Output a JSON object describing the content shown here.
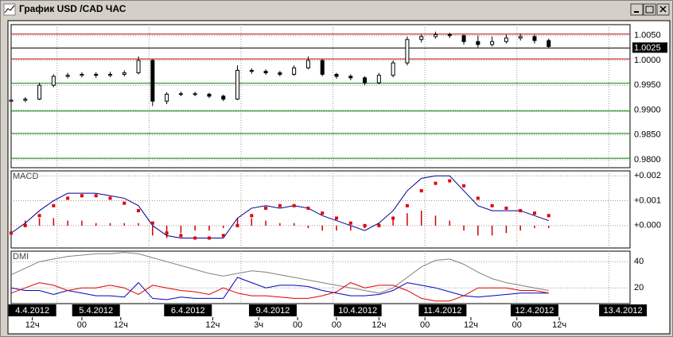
{
  "window": {
    "title": "График USD /CAD  ЧАС"
  },
  "time_axis": {
    "xlim": [
      0,
      175
    ],
    "dates": [
      {
        "value": 6,
        "label": "4.4.2012"
      },
      {
        "value": 24,
        "label": "5.4.2012"
      },
      {
        "value": 50,
        "label": "6.4.2012"
      },
      {
        "value": 74,
        "label": "9.4.2012"
      },
      {
        "value": 98,
        "label": "10.4.2012"
      },
      {
        "value": 122,
        "label": "11.4.2012"
      },
      {
        "value": 148,
        "label": "12.4.2012"
      },
      {
        "value": 173,
        "label": "13.4.2012"
      }
    ],
    "hours": [
      {
        "value": 6,
        "label": "12ч"
      },
      {
        "value": 20,
        "label": "00"
      },
      {
        "value": 31,
        "label": "12ч"
      },
      {
        "value": 57,
        "label": "12ч"
      },
      {
        "value": 70,
        "label": "3ч"
      },
      {
        "value": 81,
        "label": "00"
      },
      {
        "value": 92,
        "label": "00"
      },
      {
        "value": 104,
        "label": "12ч"
      },
      {
        "value": 117,
        "label": "00"
      },
      {
        "value": 130,
        "label": "12ч"
      },
      {
        "value": 143,
        "label": "00"
      },
      {
        "value": 155,
        "label": "12ч"
      }
    ],
    "grid": [
      13,
      39,
      65,
      91,
      117,
      143,
      169
    ]
  },
  "chart_data": [
    {
      "type": "candlestick",
      "grid": true,
      "up_color": "#ffffff",
      "down_color": "#000000",
      "x": [
        0,
        4,
        8,
        12,
        16,
        20,
        24,
        28,
        32,
        36,
        40,
        44,
        48,
        52,
        56,
        60,
        64,
        68,
        72,
        76,
        80,
        84,
        88,
        92,
        96,
        100,
        104,
        108,
        112,
        116,
        120,
        124,
        128,
        132,
        136,
        140,
        144,
        148,
        152
      ],
      "ohlc": [
        [
          0.9918,
          0.9925,
          0.9915,
          0.992
        ],
        [
          0.992,
          0.9926,
          0.9916,
          0.9922
        ],
        [
          0.9922,
          0.9955,
          0.992,
          0.995
        ],
        [
          0.995,
          0.9972,
          0.9946,
          0.9968
        ],
        [
          0.9968,
          0.9975,
          0.9964,
          0.997
        ],
        [
          0.997,
          0.9976,
          0.9966,
          0.9972
        ],
        [
          0.9972,
          0.9976,
          0.9965,
          0.997
        ],
        [
          0.997,
          0.9977,
          0.9966,
          0.9972
        ],
        [
          0.9972,
          0.998,
          0.9968,
          0.9975
        ],
        [
          0.9975,
          1.0008,
          0.9972,
          1.0
        ],
        [
          1.0,
          1.0002,
          0.9908,
          0.9918
        ],
        [
          0.9918,
          0.9936,
          0.9912,
          0.9932
        ],
        [
          0.9932,
          0.9937,
          0.9928,
          0.9933
        ],
        [
          0.9933,
          0.9937,
          0.9928,
          0.9932
        ],
        [
          0.9932,
          0.9935,
          0.9924,
          0.9928
        ],
        [
          0.9928,
          0.9931,
          0.9918,
          0.9922
        ],
        [
          0.9922,
          0.999,
          0.992,
          0.998
        ],
        [
          0.998,
          0.9984,
          0.9973,
          0.9978
        ],
        [
          0.9978,
          0.9982,
          0.9971,
          0.9975
        ],
        [
          0.9975,
          0.9979,
          0.9968,
          0.9972
        ],
        [
          0.9972,
          0.999,
          0.9969,
          0.9985
        ],
        [
          0.9985,
          1.0008,
          0.9982,
          1.0
        ],
        [
          1.0,
          1.0002,
          0.9968,
          0.9972
        ],
        [
          0.9972,
          0.9975,
          0.9963,
          0.9968
        ],
        [
          0.9968,
          0.9972,
          0.996,
          0.9965
        ],
        [
          0.9965,
          0.9968,
          0.995,
          0.9955
        ],
        [
          0.9955,
          0.9975,
          0.9952,
          0.997
        ],
        [
          0.997,
          1.0,
          0.9966,
          0.9995
        ],
        [
          0.9995,
          1.0048,
          0.999,
          1.0042
        ],
        [
          1.0042,
          1.0052,
          1.0036,
          1.0048
        ],
        [
          1.0048,
          1.0058,
          1.0044,
          1.0052
        ],
        [
          1.0052,
          1.0056,
          1.0045,
          1.005
        ],
        [
          1.005,
          1.0052,
          1.0032,
          1.0038
        ],
        [
          1.0038,
          1.005,
          1.0026,
          1.0032
        ],
        [
          1.0032,
          1.0048,
          1.0028,
          1.0038
        ],
        [
          1.0038,
          1.0052,
          1.0034,
          1.0045
        ],
        [
          1.0045,
          1.0054,
          1.004,
          1.0048
        ],
        [
          1.0048,
          1.0052,
          1.0034,
          1.004
        ],
        [
          1.004,
          1.0044,
          1.0024,
          1.0028
        ]
      ],
      "ylim": [
        0.9784,
        1.0072
      ],
      "yticks": [
        {
          "value": 1.005,
          "label": "1.0050"
        },
        {
          "value": 1.0,
          "label": "1.0000"
        },
        {
          "value": 0.995,
          "label": "0.9950"
        },
        {
          "value": 0.99,
          "label": "0.9900"
        },
        {
          "value": 0.985,
          "label": "0.9850"
        },
        {
          "value": 0.98,
          "label": "0.9800"
        }
      ],
      "levels": [
        {
          "value": 1.0053,
          "color": "#c00000"
        },
        {
          "value": 1.0003,
          "color": "#c00000"
        },
        {
          "value": 0.9954,
          "color": "#008000"
        },
        {
          "value": 0.9898,
          "color": "#008000"
        },
        {
          "value": 0.9853,
          "color": "#008000"
        },
        {
          "value": 0.9803,
          "color": "#008000"
        }
      ],
      "last_price": {
        "value": 1.0025,
        "label": "1.0025"
      }
    },
    {
      "type": "macd",
      "title": "MACD",
      "grid": true,
      "x": [
        0,
        4,
        8,
        12,
        16,
        20,
        24,
        28,
        32,
        36,
        40,
        44,
        48,
        52,
        56,
        60,
        64,
        68,
        72,
        76,
        80,
        84,
        88,
        92,
        96,
        100,
        104,
        108,
        112,
        116,
        120,
        124,
        128,
        132,
        136,
        140,
        144,
        148,
        152
      ],
      "ylim": [
        -0.0009,
        0.0022
      ],
      "yticks": [
        {
          "value": 0.002,
          "label": "+0.002"
        },
        {
          "value": 0.001,
          "label": "+0.001"
        },
        {
          "value": 0,
          "label": "+0.000"
        }
      ],
      "series": [
        {
          "style": "bars",
          "color": "#d00000",
          "values": [
            0.0001,
            0.0002,
            0.0003,
            0.0003,
            0.0002,
            0.0002,
            0.0001,
            0.0001,
            0.0001,
            0.0001,
            -0.0004,
            -0.0005,
            -0.0003,
            -0.0002,
            -0.0002,
            -0.0001,
            0.0003,
            0.0003,
            0.0002,
            0.0001,
            0.0001,
            -0.0001,
            -0.0002,
            -0.0002,
            -0.0002,
            -0.0001,
            0.0001,
            0.0003,
            0.0005,
            0.0006,
            0.0004,
            0.0002,
            -0.0002,
            -0.0004,
            -0.0004,
            -0.0003,
            -0.0002,
            -0.0001,
            -0.0001
          ]
        },
        {
          "style": "line",
          "color": "#00008b",
          "values": [
            -0.0003,
            0.0001,
            0.0006,
            0.001,
            0.0013,
            0.0013,
            0.0013,
            0.0012,
            0.0011,
            0.0008,
            0.0,
            -0.0004,
            -0.0005,
            -0.0005,
            -0.0005,
            -0.0005,
            0.0003,
            0.0007,
            0.0008,
            0.0007,
            0.0008,
            0.0007,
            0.0004,
            0.0002,
            0.0,
            -0.0002,
            0.0001,
            0.0006,
            0.0014,
            0.0019,
            0.002,
            0.002,
            0.0014,
            0.0008,
            0.0006,
            0.0006,
            0.0006,
            0.0004,
            0.0002
          ]
        },
        {
          "style": "dots",
          "color": "#e00000",
          "values": [
            -0.0003,
            0.0,
            0.0004,
            0.0008,
            0.0011,
            0.0012,
            0.0012,
            0.0011,
            0.0009,
            0.0006,
            0.0001,
            -0.0003,
            -0.0004,
            -0.0005,
            -0.0005,
            -0.0004,
            0.0,
            0.0004,
            0.0007,
            0.0008,
            0.0008,
            0.0007,
            0.0005,
            0.0003,
            0.0001,
            0.0,
            0.0,
            0.0003,
            0.0008,
            0.0014,
            0.0017,
            0.0018,
            0.0016,
            0.0011,
            0.0008,
            0.0007,
            0.0006,
            0.0005,
            0.0004
          ]
        }
      ]
    },
    {
      "type": "line",
      "title": "DMI",
      "grid": true,
      "x": [
        0,
        4,
        8,
        12,
        16,
        20,
        24,
        28,
        32,
        36,
        40,
        44,
        48,
        52,
        56,
        60,
        64,
        68,
        72,
        76,
        80,
        84,
        88,
        92,
        96,
        100,
        104,
        108,
        112,
        116,
        120,
        124,
        128,
        132,
        136,
        140,
        144,
        148,
        152
      ],
      "ylim": [
        8,
        48
      ],
      "yticks": [
        40,
        20
      ],
      "series": [
        {
          "color": "#808080",
          "values": [
            30,
            35,
            40,
            42,
            44,
            45,
            46,
            46,
            47,
            46,
            43,
            40,
            37,
            34,
            31,
            29,
            31,
            33,
            32,
            30,
            28,
            26,
            24,
            22,
            20,
            18,
            16,
            20,
            28,
            36,
            41,
            42,
            38,
            32,
            27,
            24,
            22,
            20,
            18
          ]
        },
        {
          "color": "#0000c0",
          "values": [
            20,
            18,
            18,
            15,
            18,
            16,
            14,
            14,
            13,
            24,
            12,
            11,
            13,
            12,
            12,
            12,
            28,
            24,
            20,
            22,
            22,
            21,
            18,
            16,
            14,
            14,
            15,
            18,
            24,
            22,
            20,
            17,
            14,
            13,
            14,
            15,
            16,
            16,
            16
          ]
        },
        {
          "color": "#e00000",
          "values": [
            16,
            20,
            24,
            22,
            18,
            20,
            20,
            22,
            20,
            15,
            22,
            20,
            18,
            17,
            15,
            20,
            16,
            14,
            14,
            13,
            12,
            12,
            14,
            17,
            24,
            20,
            22,
            22,
            18,
            12,
            10,
            10,
            14,
            20,
            20,
            20,
            18,
            18,
            16
          ]
        }
      ]
    }
  ]
}
